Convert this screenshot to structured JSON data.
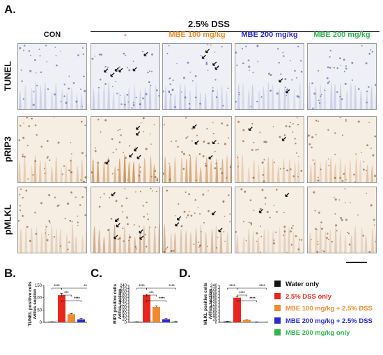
{
  "figure": {
    "panel_A_letter": "A.",
    "panel_B_letter": "B.",
    "panel_C_letter": "C.",
    "panel_D_letter": "D.",
    "dss_header": "2.5% DSS",
    "columns": [
      {
        "label": "CON",
        "color": "#111111"
      },
      {
        "label": "-",
        "color": "#e8261f"
      },
      {
        "label": "MBE 100 mg/kg",
        "color": "#f08a2e"
      },
      {
        "label": "MBE 200 mg/kg",
        "color": "#2a2ad0"
      },
      {
        "label": "MBE 200 mg/kg",
        "color": "#2fb34a"
      }
    ],
    "rows": [
      "TUNEL",
      "pRIP3",
      "pMLKL"
    ],
    "stain_colors": {
      "TUNEL": "#8c8fc8",
      "pRIP3": "#c8894a",
      "pMLKL": "#c9a584"
    }
  },
  "legend": [
    {
      "label": "Water only",
      "color": "#111111"
    },
    {
      "label": "2.5% DSS only",
      "color": "#e8261f"
    },
    {
      "label": "MBE 100 mg/kg + 2.5% DSS",
      "color": "#f08a2e"
    },
    {
      "label": "MBE 200 mg/kg + 2.5% DSS",
      "color": "#2a2ad0"
    },
    {
      "label": "MBE 200 mg/kg only",
      "color": "#2fb34a"
    }
  ],
  "chart_data": [
    {
      "type": "bar",
      "panel": "B",
      "ylabel": [
        "TUNEL positive cells",
        "/villus section"
      ],
      "ylim": [
        0,
        150
      ],
      "yticks": [
        "0",
        "50",
        "100",
        "150"
      ],
      "series": [
        {
          "values": [
            2,
            110,
            33,
            12,
            1
          ]
        }
      ],
      "errors": [
        0.5,
        8,
        3,
        3,
        0.5
      ],
      "significance": [
        "****",
        "****",
        "***",
        "****"
      ]
    },
    {
      "type": "bar",
      "panel": "C",
      "ylabel": [
        "RIP3 positive cells",
        "/villus section"
      ],
      "ylim": [
        0,
        240
      ],
      "yticks": [
        "0",
        "20",
        "40",
        "60",
        "80",
        "100",
        "120",
        "140",
        "160",
        "180",
        "200",
        "220",
        "240"
      ],
      "series": [
        {
          "values": [
            3,
            178,
            100,
            20,
            5
          ]
        }
      ],
      "errors": [
        1,
        6,
        6,
        6,
        1
      ],
      "significance": [
        "****",
        "****",
        "***",
        "****"
      ]
    },
    {
      "type": "bar",
      "panel": "D",
      "ylabel": [
        "MLKL positive cells",
        "/villus section"
      ],
      "ylim": [
        0,
        240
      ],
      "yticks": [
        "0",
        "20",
        "40",
        "60",
        "80",
        "100",
        "120",
        "140",
        "160",
        "180",
        "200",
        "220",
        "240"
      ],
      "series": [
        {
          "values": [
            5,
            160,
            15,
            2,
            1
          ]
        }
      ],
      "errors": [
        2,
        10,
        2,
        1,
        0.5
      ],
      "significance": [
        "****",
        "****",
        "****",
        "****"
      ]
    }
  ]
}
